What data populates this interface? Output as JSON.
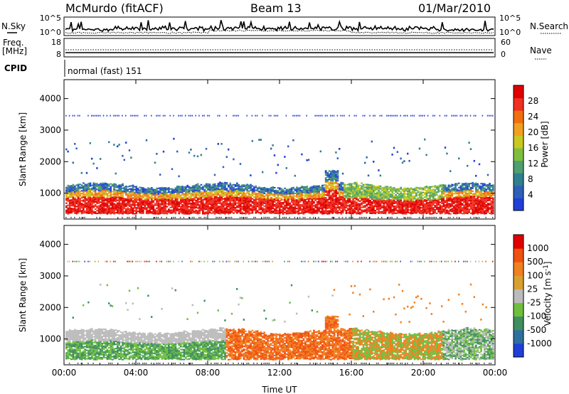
{
  "header": {
    "station": "McMurdo (fitACF)",
    "beam": "Beam 13",
    "date": "01/Mar/2010"
  },
  "summary_panels": {
    "nsky_label": "N.Sky",
    "nsearch_label": "N.Search",
    "freq_label_1": "Freq.",
    "freq_label_2": "[MHz]",
    "nave_label": "Nave",
    "cpid_label": "CPID",
    "cpid_text": "normal (fast) 151",
    "noise_left_ticks": [
      "10^5",
      "10^0"
    ],
    "noise_right_ticks": [
      "10^5",
      "10^0"
    ],
    "freq_left_ticks": [
      "18",
      "8"
    ],
    "freq_right_ticks": [
      "60",
      "0"
    ]
  },
  "colors": {
    "power_scale": [
      "#1f3fd8",
      "#2f5fb8",
      "#2f7f8f",
      "#4f9f6f",
      "#7fbf3f",
      "#c8c820",
      "#f0a020",
      "#f07010",
      "#f03020",
      "#e00000"
    ],
    "velocity_scale": [
      "#1f3fd8",
      "#2f6fa0",
      "#3f8f5f",
      "#6fbf3f",
      "#bbbbbb",
      "#d8a030",
      "#f08020",
      "#f05010",
      "#e00000"
    ]
  },
  "chart_data": [
    {
      "type": "heatmap",
      "name": "power-panel",
      "ylabel": "Slant Range [km]",
      "x_ticks": [
        "00:00",
        "04:00",
        "08:00",
        "12:00",
        "16:00",
        "20:00",
        "00:00"
      ],
      "x_range_hours": [
        0,
        24
      ],
      "ylim": [
        180,
        4600
      ],
      "y_ticks": [
        1000,
        2000,
        3000,
        4000
      ],
      "colorbar_label": "Power [dB]",
      "colorbar_ticks": [
        "4",
        "8",
        "12",
        "16",
        "20",
        "24",
        "28"
      ],
      "colorbar_range": [
        0,
        32
      ],
      "bands": [
        {
          "name": "near-range-strong",
          "t_start": 0.0,
          "t_end": 24.0,
          "r_min": 300,
          "r_max": 1250,
          "level": "high"
        },
        {
          "name": "scatter-1500-2500",
          "t_start": 0.0,
          "t_end": 24.0,
          "r_min": 1500,
          "r_max": 2600,
          "level": "low"
        },
        {
          "name": "scatter-3500",
          "t_start": 0.0,
          "t_end": 24.0,
          "r_min": 3400,
          "r_max": 3550,
          "level": "low"
        }
      ]
    },
    {
      "type": "heatmap",
      "name": "velocity-panel",
      "ylabel": "Slant Range [km]",
      "x_ticks": [
        "00:00",
        "04:00",
        "08:00",
        "12:00",
        "16:00",
        "20:00",
        "00:00"
      ],
      "xlabel": "Time UT",
      "x_range_hours": [
        0,
        24
      ],
      "ylim": [
        180,
        4600
      ],
      "y_ticks": [
        1000,
        2000,
        3000,
        4000
      ],
      "colorbar_label": "Velocity [m s^-1]",
      "colorbar_ticks": [
        "1000",
        "500",
        "100",
        "25",
        "-25",
        "-100",
        "-500",
        "-1000"
      ],
      "colorbar_range": [
        -1000,
        1000
      ]
    }
  ]
}
